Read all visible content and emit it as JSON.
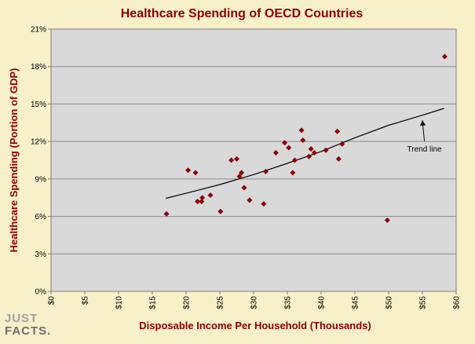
{
  "chart_data": {
    "type": "scatter",
    "title": "Healthcare Spending of OECD Countries",
    "xlabel": "Disposable Income Per Household (Thousands)",
    "ylabel": "Healthcare Spending (Portion of GDP)",
    "xlim": [
      0,
      60
    ],
    "ylim": [
      0,
      21
    ],
    "x_ticks": [
      0,
      5,
      10,
      15,
      20,
      25,
      30,
      35,
      40,
      45,
      50,
      55,
      60
    ],
    "x_tick_labels": [
      "$0",
      "$5",
      "$10",
      "$15",
      "$20",
      "$25",
      "$30",
      "$35",
      "$40",
      "$45",
      "$50",
      "$55",
      "$60"
    ],
    "y_ticks": [
      0,
      3,
      6,
      9,
      12,
      15,
      18,
      21
    ],
    "y_tick_labels": [
      "0%",
      "3%",
      "6%",
      "9%",
      "12%",
      "15%",
      "18%",
      "21%"
    ],
    "grid": "horizontal",
    "marker_color": "#8b0000",
    "points": [
      {
        "x": 17.1,
        "y": 6.2
      },
      {
        "x": 20.3,
        "y": 9.7
      },
      {
        "x": 21.4,
        "y": 9.5
      },
      {
        "x": 21.7,
        "y": 7.2
      },
      {
        "x": 22.3,
        "y": 7.2
      },
      {
        "x": 22.4,
        "y": 7.5
      },
      {
        "x": 23.6,
        "y": 7.7
      },
      {
        "x": 25.1,
        "y": 6.4
      },
      {
        "x": 26.7,
        "y": 10.5
      },
      {
        "x": 27.5,
        "y": 10.6
      },
      {
        "x": 27.9,
        "y": 9.2
      },
      {
        "x": 28.2,
        "y": 9.5
      },
      {
        "x": 28.6,
        "y": 8.3
      },
      {
        "x": 29.4,
        "y": 7.3
      },
      {
        "x": 31.5,
        "y": 7.0
      },
      {
        "x": 31.8,
        "y": 9.6
      },
      {
        "x": 33.3,
        "y": 11.1
      },
      {
        "x": 34.6,
        "y": 11.9
      },
      {
        "x": 35.2,
        "y": 11.5
      },
      {
        "x": 35.8,
        "y": 9.5
      },
      {
        "x": 36.1,
        "y": 10.5
      },
      {
        "x": 37.1,
        "y": 12.9
      },
      {
        "x": 37.3,
        "y": 12.1
      },
      {
        "x": 38.2,
        "y": 10.8
      },
      {
        "x": 38.5,
        "y": 11.4
      },
      {
        "x": 39.0,
        "y": 11.1
      },
      {
        "x": 40.7,
        "y": 11.3
      },
      {
        "x": 42.4,
        "y": 12.8
      },
      {
        "x": 42.6,
        "y": 10.6
      },
      {
        "x": 43.1,
        "y": 11.8
      },
      {
        "x": 49.8,
        "y": 5.7
      },
      {
        "x": 58.3,
        "y": 18.8
      }
    ],
    "trend_line": {
      "x": [
        17,
        20,
        25,
        30,
        35,
        40,
        45,
        50,
        55,
        58.2
      ],
      "y": [
        7.45,
        7.85,
        8.55,
        9.35,
        10.25,
        11.2,
        12.3,
        13.3,
        14.1,
        14.65
      ]
    },
    "annotations": [
      {
        "label": "Trend line",
        "x": 55.3,
        "y": 11.2,
        "arrow_to_x": 55.0,
        "arrow_to_y": 13.8
      }
    ]
  },
  "logo": {
    "line1": "JUST",
    "line2": "FACTS."
  }
}
